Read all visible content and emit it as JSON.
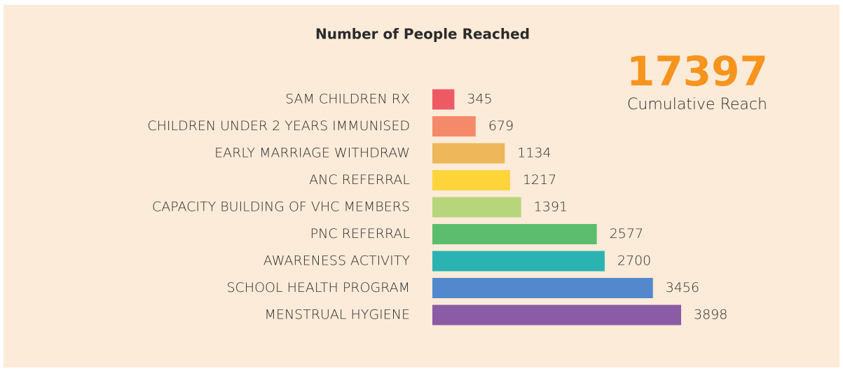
{
  "chart_data": {
    "type": "bar",
    "orientation": "horizontal",
    "title": "Number of People Reached",
    "total": 17397,
    "total_label": "Cumulative Reach",
    "total_color": "#f7941d",
    "categories": [
      "SAM CHILDREN RX",
      "CHILDREN UNDER 2 YEARS IMMUNISED",
      "EARLY MARRIAGE WITHDRAW",
      "ANC REFERRAL",
      "CAPACITY BUILDING OF VHC MEMBERS",
      "PNC REFERRAL",
      "AWARENESS ACTIVITY",
      "SCHOOL HEALTH PROGRAM",
      "MENSTRUAL HYGIENE"
    ],
    "values": [
      345,
      679,
      1134,
      1217,
      1391,
      2577,
      2700,
      3456,
      3898
    ],
    "colors": [
      "#ee5a64",
      "#f58a6a",
      "#edb75a",
      "#fed43b",
      "#b7d67b",
      "#5dbd6e",
      "#2ab3b1",
      "#5389cc",
      "#8c5ba6"
    ]
  }
}
